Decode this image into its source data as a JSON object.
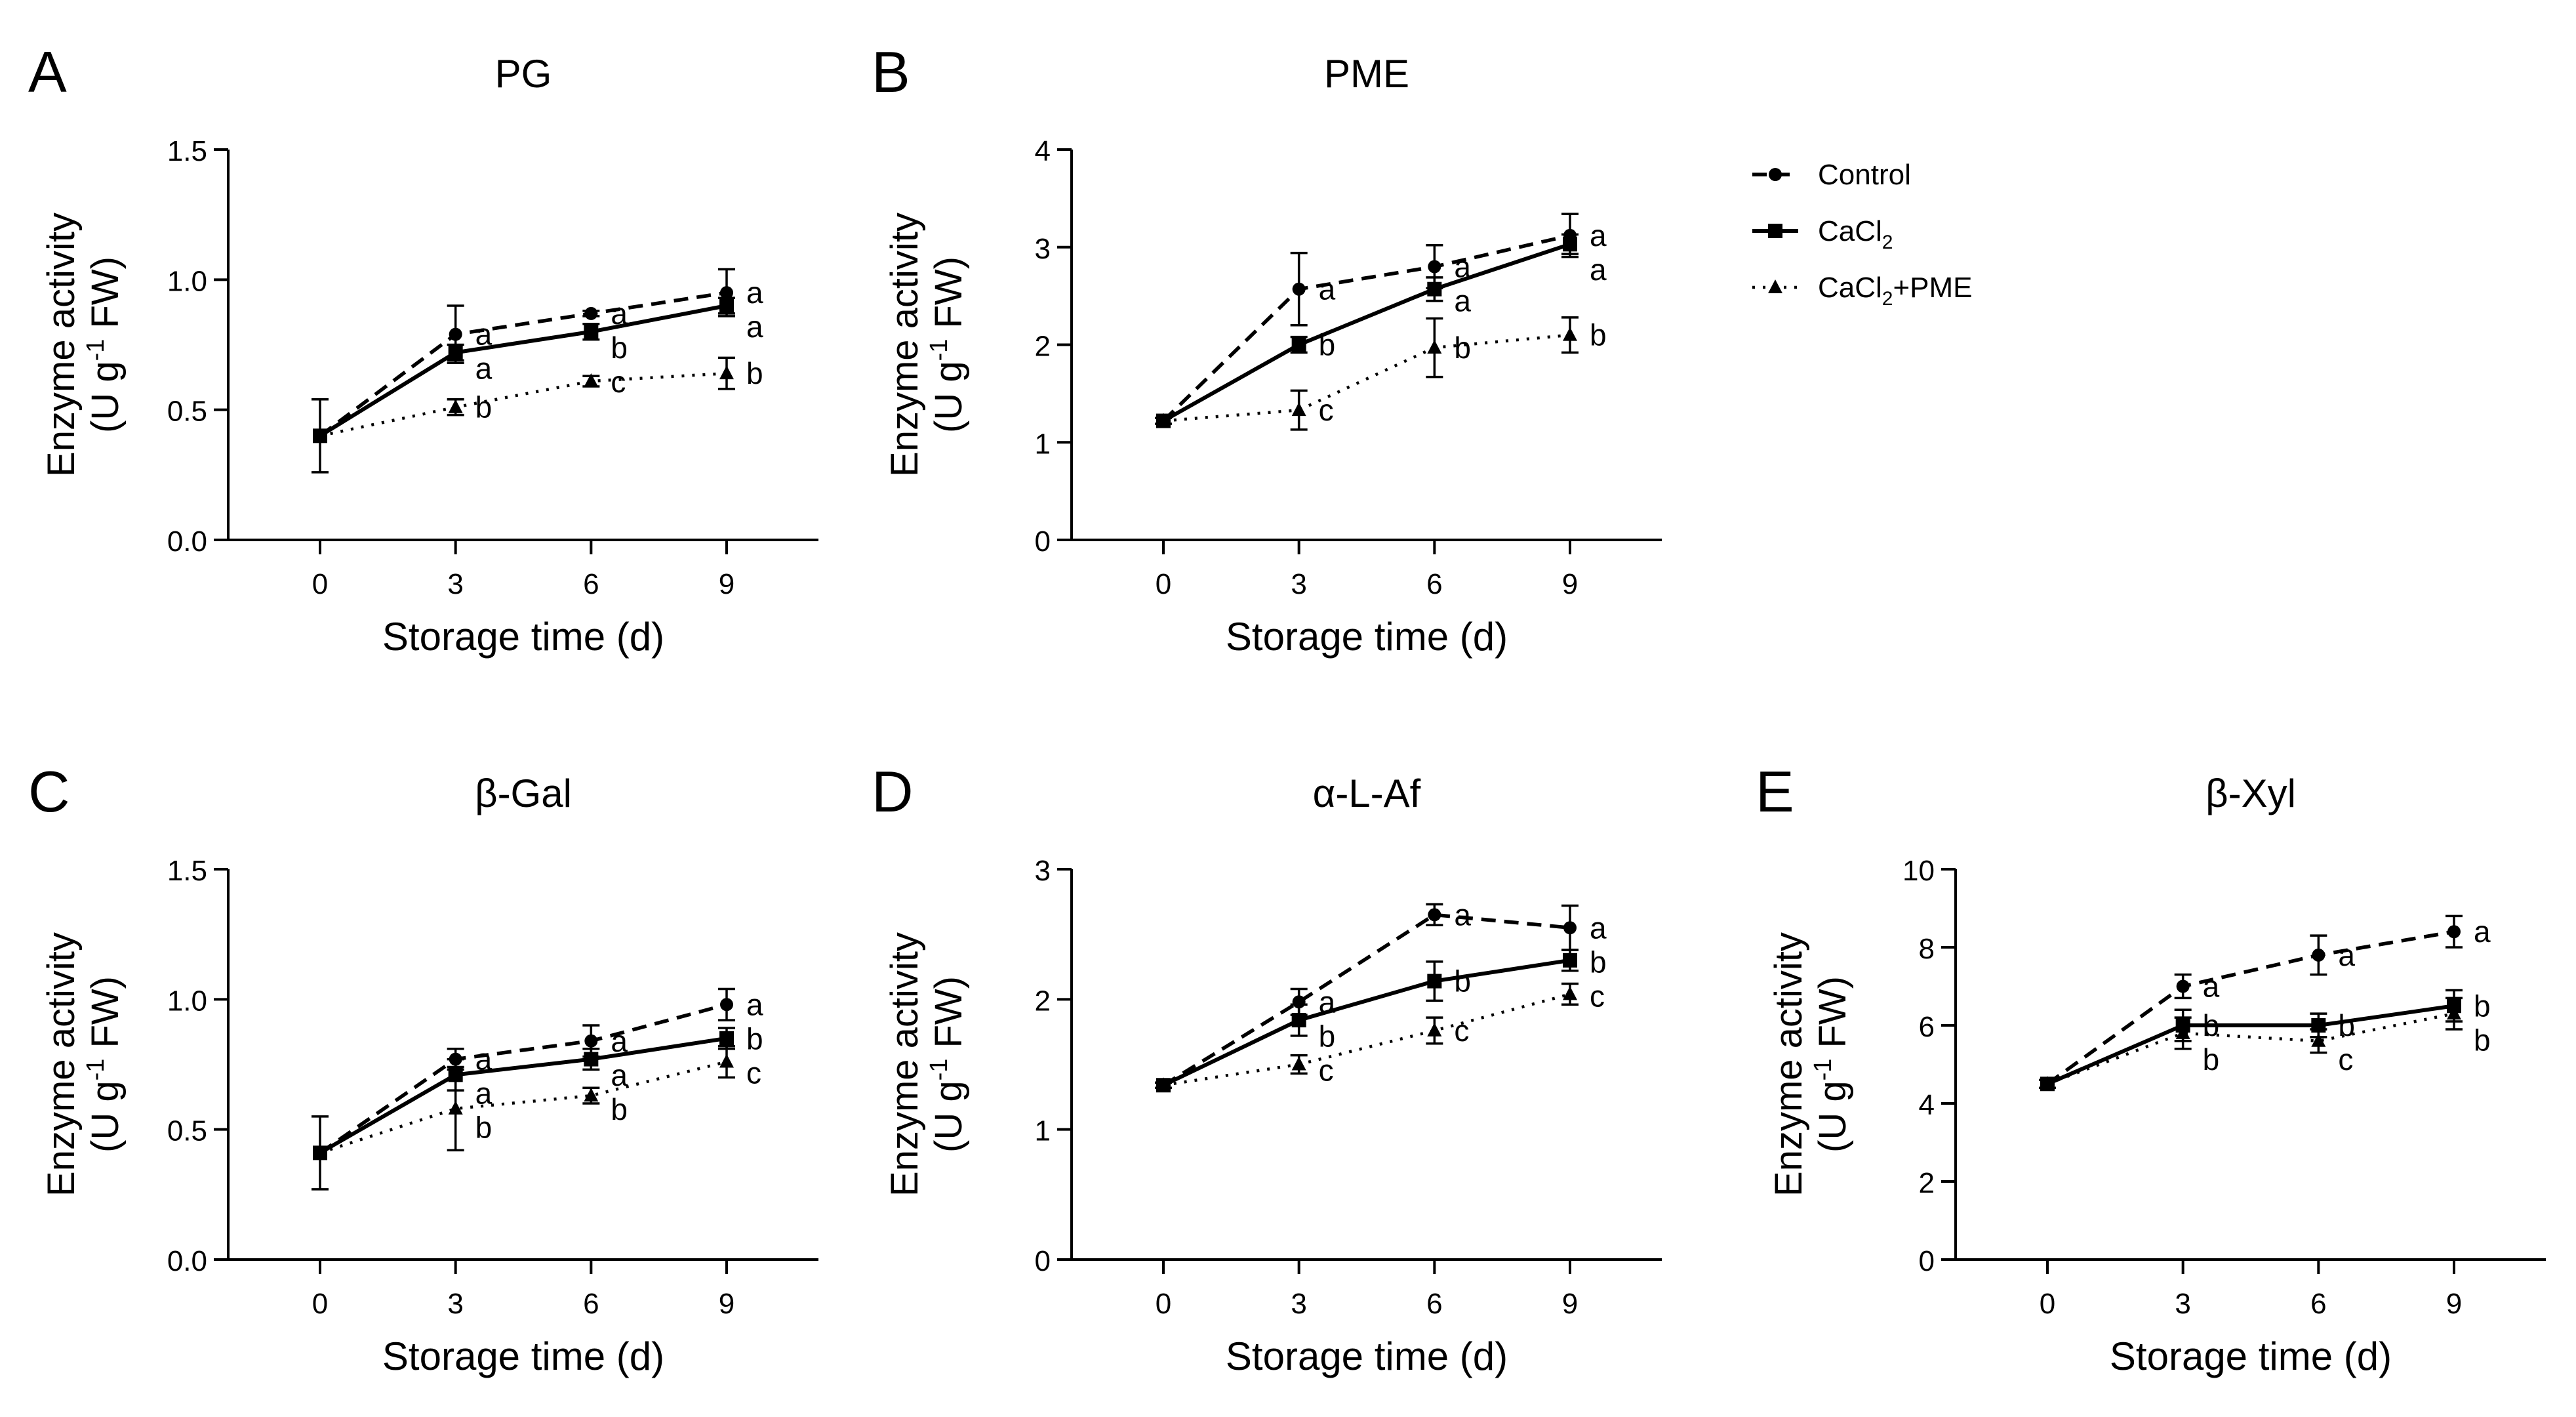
{
  "chart_data": [
    {
      "type": "line",
      "panel": "A",
      "title": "PG",
      "xlabel": "Storage time (d)",
      "ylabel_line1": "Enzyme activity",
      "ylabel_line2_pre": "(U g",
      "ylabel_line2_sup": "-1",
      "ylabel_line2_post": " FW)",
      "ylim": [
        0,
        1.5
      ],
      "yticks": [
        "0.0",
        "0.5",
        "1.0",
        "1.5"
      ],
      "x": [
        0,
        3,
        6,
        9
      ],
      "xticks": [
        "0",
        "3",
        "6",
        "9"
      ],
      "series": [
        {
          "name": "Control",
          "values": [
            0.4,
            0.79,
            0.87,
            0.95
          ],
          "errors": [
            0,
            0.11,
            0.01,
            0.09
          ],
          "letters": [
            "",
            "a",
            "a",
            "a"
          ]
        },
        {
          "name": "CaCl2",
          "values": [
            0.4,
            0.72,
            0.8,
            0.9
          ],
          "errors": [
            0.14,
            0.03,
            0.03,
            0.03
          ],
          "letters": [
            "",
            "a",
            "b",
            "a"
          ]
        },
        {
          "name": "CaCl2+PME",
          "values": [
            0.4,
            0.51,
            0.61,
            0.64
          ],
          "errors": [
            0,
            0.03,
            0.02,
            0.06
          ],
          "letters": [
            "",
            "b",
            "c",
            "b"
          ]
        }
      ]
    },
    {
      "type": "line",
      "panel": "B",
      "title": "PME",
      "xlabel": "Storage time (d)",
      "ylabel_line1": "Enzyme activity",
      "ylabel_line2_pre": "(U g",
      "ylabel_line2_sup": "-1",
      "ylabel_line2_post": " FW)",
      "ylim": [
        0,
        4
      ],
      "yticks": [
        "0",
        "1",
        "2",
        "3",
        "4"
      ],
      "x": [
        0,
        3,
        6,
        9
      ],
      "xticks": [
        "0",
        "3",
        "6",
        "9"
      ],
      "series": [
        {
          "name": "Control",
          "values": [
            1.22,
            2.57,
            2.8,
            3.12
          ],
          "errors": [
            0,
            0.37,
            0.22,
            0.22
          ],
          "letters": [
            "",
            "a",
            "a",
            "a"
          ]
        },
        {
          "name": "CaCl2",
          "values": [
            1.22,
            2.0,
            2.57,
            3.03
          ],
          "errors": [
            0.03,
            0.08,
            0.12,
            0.1
          ],
          "letters": [
            "",
            "b",
            "a",
            "a"
          ]
        },
        {
          "name": "CaCl2+PME",
          "values": [
            1.22,
            1.33,
            1.97,
            2.1
          ],
          "errors": [
            0,
            0.2,
            0.3,
            0.18
          ],
          "letters": [
            "",
            "c",
            "b",
            "b"
          ]
        }
      ]
    },
    {
      "type": "line",
      "panel": "C",
      "title": "β-Gal",
      "xlabel": "Storage time (d)",
      "ylabel_line1": "Enzyme activity",
      "ylabel_line2_pre": "(U g",
      "ylabel_line2_sup": "-1",
      "ylabel_line2_post": " FW)",
      "ylim": [
        0,
        1.5
      ],
      "yticks": [
        "0.0",
        "0.5",
        "1.0",
        "1.5"
      ],
      "x": [
        0,
        3,
        6,
        9
      ],
      "xticks": [
        "0",
        "3",
        "6",
        "9"
      ],
      "series": [
        {
          "name": "Control",
          "values": [
            0.41,
            0.77,
            0.84,
            0.98
          ],
          "errors": [
            0,
            0.04,
            0.06,
            0.06
          ],
          "letters": [
            "",
            "a",
            "a",
            "a"
          ]
        },
        {
          "name": "CaCl2",
          "values": [
            0.41,
            0.71,
            0.77,
            0.85
          ],
          "errors": [
            0.14,
            0.06,
            0.04,
            0.04
          ],
          "letters": [
            "",
            "a",
            "a",
            "b"
          ]
        },
        {
          "name": "CaCl2+PME",
          "values": [
            0.41,
            0.58,
            0.63,
            0.76
          ],
          "errors": [
            0,
            0.16,
            0.03,
            0.06
          ],
          "letters": [
            "",
            "b",
            "b",
            "c"
          ]
        }
      ]
    },
    {
      "type": "line",
      "panel": "D",
      "title": "α-L-Af",
      "xlabel": "Storage time (d)",
      "ylabel_line1": "Enzyme activity",
      "ylabel_line2_pre": "(U g",
      "ylabel_line2_sup": "-1",
      "ylabel_line2_post": " FW)",
      "ylim": [
        0,
        3
      ],
      "yticks": [
        "0",
        "1",
        "2",
        "3"
      ],
      "x": [
        0,
        3,
        6,
        9
      ],
      "xticks": [
        "0",
        "3",
        "6",
        "9"
      ],
      "series": [
        {
          "name": "Control",
          "values": [
            1.34,
            1.98,
            2.65,
            2.55
          ],
          "errors": [
            0,
            0.1,
            0.08,
            0.17
          ],
          "letters": [
            "",
            "a",
            "a",
            "a"
          ]
        },
        {
          "name": "CaCl2",
          "values": [
            1.34,
            1.84,
            2.14,
            2.3
          ],
          "errors": [
            0.02,
            0.12,
            0.15,
            0.08
          ],
          "letters": [
            "",
            "b",
            "b",
            "b"
          ]
        },
        {
          "name": "CaCl2+PME",
          "values": [
            1.34,
            1.5,
            1.76,
            2.04
          ],
          "errors": [
            0,
            0.07,
            0.1,
            0.08
          ],
          "letters": [
            "",
            "c",
            "c",
            "c"
          ]
        }
      ]
    },
    {
      "type": "line",
      "panel": "E",
      "title": "β-Xyl",
      "xlabel": "Storage time (d)",
      "ylabel_line1": "Enzyme activity",
      "ylabel_line2_pre": "(U g",
      "ylabel_line2_sup": "-1",
      "ylabel_line2_post": " FW)",
      "ylim": [
        0,
        10
      ],
      "yticks": [
        "0",
        "2",
        "4",
        "6",
        "8",
        "10"
      ],
      "x": [
        0,
        3,
        6,
        9
      ],
      "xticks": [
        "0",
        "3",
        "6",
        "9"
      ],
      "series": [
        {
          "name": "Control",
          "values": [
            4.5,
            7.0,
            7.8,
            8.4
          ],
          "errors": [
            0,
            0.3,
            0.5,
            0.4
          ],
          "letters": [
            "",
            "a",
            "a",
            "a"
          ]
        },
        {
          "name": "CaCl2",
          "values": [
            4.5,
            6.0,
            6.0,
            6.5
          ],
          "errors": [
            0.1,
            0.4,
            0.3,
            0.4
          ],
          "letters": [
            "",
            "b",
            "b",
            "b"
          ]
        },
        {
          "name": "CaCl2+PME",
          "values": [
            4.5,
            5.8,
            5.6,
            6.3
          ],
          "errors": [
            0,
            0.4,
            0.3,
            0.4
          ],
          "letters": [
            "",
            "b",
            "c",
            "b"
          ]
        }
      ]
    }
  ],
  "legend": {
    "items": [
      {
        "name": "Control",
        "main": "Control",
        "sub": "",
        "tail": ""
      },
      {
        "name": "CaCl2",
        "main": "CaCl",
        "sub": "2",
        "tail": ""
      },
      {
        "name": "CaCl2+PME",
        "main": "CaCl",
        "sub": "2",
        "tail": "+PME"
      }
    ]
  },
  "style": {
    "ink": "#000000",
    "background": "#ffffff"
  }
}
